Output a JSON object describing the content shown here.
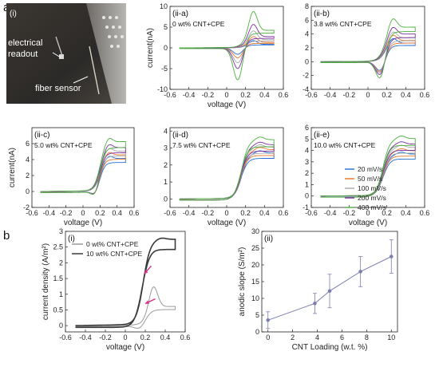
{
  "figure": {
    "panel_letters": [
      "a",
      "b"
    ]
  },
  "photo": {
    "label": "(i)",
    "annotations": [
      "electrical readout",
      "fiber sensor"
    ]
  },
  "cv_legend": {
    "entries": [
      "20 mV/s",
      "50 mV/s",
      "100 mV/s",
      "200 mV/s",
      "400 mV/s"
    ],
    "colors": [
      "#1f6fd6",
      "#e8742a",
      "#a8a8a8",
      "#7a2da0",
      "#4caf3f"
    ]
  },
  "chart_data": [
    {
      "id": "ii-a",
      "type": "line",
      "panel_label": "(ii-a)",
      "title": "0 wt% CNT+CPE",
      "xlabel": "voltage (V)",
      "ylabel": "current(nA)",
      "xlim": [
        -0.6,
        0.6
      ],
      "ylim": [
        -10,
        10
      ],
      "xticks": [
        -0.6,
        -0.4,
        -0.2,
        0,
        0.2,
        0.4,
        0.6
      ],
      "yticks": [
        -10,
        -5,
        0,
        5,
        10
      ],
      "cv": {
        "scale": [
          1.8,
          2.8,
          4.2,
          5.8,
          9.0
        ],
        "plateau_ratio": 0.45,
        "knee": 0.2,
        "peak_v": 0.28,
        "rev_peak_v": 0.12,
        "rev_ratio": 0.9
      }
    },
    {
      "id": "ii-b",
      "type": "line",
      "panel_label": "(ii-b)",
      "title": "3.8 wt% CNT+CPE",
      "xlabel": "",
      "ylabel": "",
      "xlim": [
        -0.6,
        0.6
      ],
      "ylim": [
        -4,
        8
      ],
      "xticks": [
        -0.6,
        -0.4,
        -0.2,
        0,
        0.2,
        0.4,
        0.6
      ],
      "yticks": [
        -4,
        -2,
        0,
        2,
        4,
        6,
        8
      ],
      "cv": {
        "scale": [
          3.5,
          4.0,
          4.5,
          5.2,
          6.5
        ],
        "plateau_ratio": 0.75,
        "knee": 0.18,
        "peak_v": 0.26,
        "rev_peak_v": 0.14,
        "rev_ratio": 0.55
      }
    },
    {
      "id": "ii-c",
      "type": "line",
      "panel_label": "(ii-c)",
      "title": "5.0 wt% CNT+CPE",
      "xlabel": "voltage (V)",
      "ylabel": "current(nA)",
      "xlim": [
        -0.6,
        0.6
      ],
      "ylim": [
        -2,
        8
      ],
      "xticks": [
        -0.6,
        -0.4,
        -0.2,
        0,
        0.2,
        0.4,
        0.6
      ],
      "yticks": [
        -2,
        0,
        2,
        4,
        6
      ],
      "cv": {
        "scale": [
          4.5,
          5.0,
          5.5,
          6.0,
          6.8
        ],
        "plateau_ratio": 0.9,
        "knee": 0.2,
        "peak_v": 0.3,
        "rev_peak_v": 0.16,
        "rev_ratio": 0.22
      }
    },
    {
      "id": "ii-d",
      "type": "line",
      "panel_label": "(ii-d)",
      "title": "7.5 wt% CNT+CPE",
      "xlabel": "voltage (V)",
      "ylabel": "",
      "xlim": [
        -0.6,
        0.6
      ],
      "ylim": [
        -0.5,
        4.2
      ],
      "xticks": [
        -0.6,
        -0.4,
        -0.2,
        0,
        0.2,
        0.4,
        0.6
      ],
      "yticks": [
        0,
        1,
        2,
        3,
        4
      ],
      "cv": {
        "scale": [
          2.8,
          3.0,
          3.15,
          3.3,
          3.6
        ],
        "plateau_ratio": 0.95,
        "knee": 0.16,
        "peak_v": 0.35,
        "rev_peak_v": 0.16,
        "rev_ratio": 0.05
      }
    },
    {
      "id": "ii-e",
      "type": "line",
      "panel_label": "(ii-e)",
      "title": "10.0 wt% CNT+CPE",
      "xlabel": "voltage (V)",
      "ylabel": "",
      "xlim": [
        -0.6,
        0.6
      ],
      "ylim": [
        -1,
        6
      ],
      "xticks": [
        -0.6,
        -0.4,
        -0.2,
        0,
        0.2,
        0.4,
        0.6
      ],
      "yticks": [
        -1,
        0,
        1,
        2,
        3,
        4,
        5,
        6
      ],
      "cv": {
        "scale": [
          3.8,
          4.1,
          4.4,
          4.7,
          5.2
        ],
        "plateau_ratio": 0.95,
        "knee": 0.16,
        "peak_v": 0.35,
        "rev_peak_v": 0.16,
        "rev_ratio": 0.1
      },
      "legend_position": "center-right"
    },
    {
      "id": "b-i",
      "type": "line",
      "panel_label": "(i)",
      "title": "",
      "xlabel": "voltage (V)",
      "ylabel": "current density (A/m²)",
      "xlim": [
        -0.6,
        0.6
      ],
      "ylim": [
        -0.2,
        3.0
      ],
      "xticks": [
        -0.6,
        -0.4,
        -0.2,
        0,
        0.2,
        0.4,
        0.6
      ],
      "yticks": [
        0,
        0.5,
        1,
        1.5,
        2,
        2.5,
        3
      ],
      "legend_position": "top-left",
      "series": [
        {
          "name": "0 wt% CNT+CPE",
          "color": "#9a9a9a",
          "cv": {
            "amp": 1.3,
            "plateau_ratio": 0.45,
            "knee": 0.22,
            "peak_v": 0.28,
            "rev_peak_v": 0.15,
            "rev_ratio": 0.1
          }
        },
        {
          "name": "10 wt% CNT+CPE",
          "color": "#3a3a3a",
          "cv": {
            "amp": 2.75,
            "plateau_ratio": 0.98,
            "knee": 0.18,
            "peak_v": 0.36,
            "rev_peak_v": 0.18,
            "rev_ratio": 0.05
          }
        }
      ],
      "arrows": [
        {
          "from": [
            0.26,
            1.9
          ],
          "to": [
            0.19,
            1.65
          ]
        },
        {
          "from": [
            0.3,
            0.85
          ],
          "to": [
            0.2,
            0.7
          ]
        }
      ]
    },
    {
      "id": "b-ii",
      "type": "scatter",
      "panel_label": "(ii)",
      "title": "",
      "xlabel": "CNT Loading (w.t. %)",
      "ylabel": "anodic slope (S/m²)",
      "xlim": [
        -0.5,
        10.5
      ],
      "ylim": [
        0,
        30
      ],
      "xticks": [
        0,
        2,
        4,
        6,
        8,
        10
      ],
      "yticks": [
        0,
        5,
        10,
        15,
        20,
        25,
        30
      ],
      "x": [
        0,
        3.8,
        5.0,
        7.5,
        10.0
      ],
      "y": [
        3.5,
        8.5,
        12.2,
        18.0,
        22.5
      ],
      "err": [
        2.5,
        3.0,
        5.0,
        4.5,
        5.0
      ],
      "color": "#7b7fb0"
    }
  ]
}
